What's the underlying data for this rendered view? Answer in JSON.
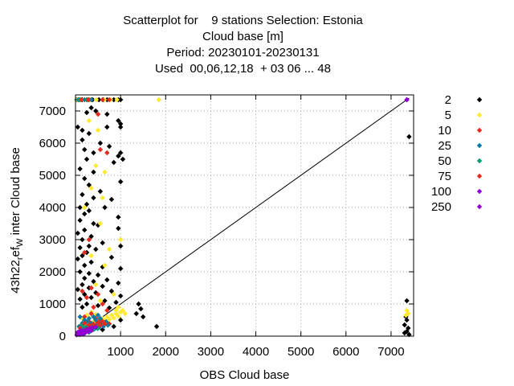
{
  "chart_data": {
    "type": "scatter",
    "title_lines": [
      "Scatterplot for    9 stations Selection: Estonia",
      "Cloud base [m]",
      "Period: 20230101-20230131",
      "Used  00,06,12,18  + 03 06 ... 48"
    ],
    "xlabel": "OBS Cloud base",
    "ylabel": "43h22 ref W inter Cloud base",
    "ylabel_parts": {
      "pre": "43h22",
      "sub1": "r",
      "mid": "ef",
      "sub2": "W",
      "post": "inter Cloud base"
    },
    "xlim": [
      0,
      7500
    ],
    "ylim": [
      0,
      7500
    ],
    "xticks": [
      1000,
      2000,
      3000,
      4000,
      5000,
      6000,
      7000
    ],
    "yticks": [
      0,
      1000,
      2000,
      3000,
      4000,
      5000,
      6000,
      7000
    ],
    "grid": true,
    "diagonal": true,
    "legend_position": "right",
    "series": [
      {
        "name": "2",
        "color": "#000000",
        "points": [
          [
            30,
            7350
          ],
          [
            150,
            7350
          ],
          [
            250,
            7350
          ],
          [
            380,
            7350
          ],
          [
            520,
            7350
          ],
          [
            620,
            7350
          ],
          [
            700,
            7350
          ],
          [
            850,
            7350
          ],
          [
            950,
            7350
          ],
          [
            1000,
            7350
          ],
          [
            350,
            7100
          ],
          [
            450,
            7000
          ],
          [
            700,
            6900
          ],
          [
            250,
            6950
          ],
          [
            1000,
            6600
          ],
          [
            1000,
            6500
          ],
          [
            950,
            6700
          ],
          [
            50,
            6500
          ],
          [
            150,
            6400
          ],
          [
            700,
            6500
          ],
          [
            300,
            6300
          ],
          [
            150,
            6100
          ],
          [
            550,
            6000
          ],
          [
            200,
            5800
          ],
          [
            400,
            5700
          ],
          [
            1000,
            5700
          ],
          [
            1050,
            5500
          ],
          [
            950,
            5600
          ],
          [
            750,
            5900
          ],
          [
            850,
            5400
          ],
          [
            250,
            5500
          ],
          [
            100,
            5200
          ],
          [
            400,
            5100
          ],
          [
            200,
            4900
          ],
          [
            1000,
            4800
          ],
          [
            300,
            4700
          ],
          [
            550,
            4500
          ],
          [
            150,
            4400
          ],
          [
            400,
            4300
          ],
          [
            800,
            4250
          ],
          [
            250,
            4100
          ],
          [
            100,
            4000
          ],
          [
            650,
            4000
          ],
          [
            300,
            3900
          ],
          [
            200,
            3800
          ],
          [
            950,
            3700
          ],
          [
            100,
            3600
          ],
          [
            400,
            3500
          ],
          [
            500,
            3450
          ],
          [
            950,
            3350
          ],
          [
            200,
            3300
          ],
          [
            50,
            3200
          ],
          [
            350,
            3100
          ],
          [
            150,
            3000
          ],
          [
            600,
            2900
          ],
          [
            300,
            2800
          ],
          [
            100,
            2750
          ],
          [
            1000,
            2800
          ],
          [
            450,
            2700
          ],
          [
            250,
            2600
          ],
          [
            150,
            2500
          ],
          [
            800,
            2450
          ],
          [
            50,
            2400
          ],
          [
            350,
            2300
          ],
          [
            200,
            2200
          ],
          [
            600,
            2150
          ],
          [
            1000,
            2100
          ],
          [
            100,
            2000
          ],
          [
            300,
            1950
          ],
          [
            500,
            1900
          ],
          [
            200,
            1800
          ],
          [
            700,
            1750
          ],
          [
            400,
            1700
          ],
          [
            950,
            1650
          ],
          [
            150,
            1600
          ],
          [
            600,
            1550
          ],
          [
            300,
            1500
          ],
          [
            50,
            1450
          ],
          [
            800,
            1400
          ],
          [
            450,
            1350
          ],
          [
            200,
            1300
          ],
          [
            1000,
            1250
          ],
          [
            350,
            1200
          ],
          [
            100,
            1150
          ],
          [
            650,
            1100
          ],
          [
            900,
            1050
          ],
          [
            250,
            1000
          ],
          [
            500,
            950
          ],
          [
            150,
            900
          ],
          [
            750,
            880
          ],
          [
            1400,
            1000
          ],
          [
            1450,
            850
          ],
          [
            1350,
            700
          ],
          [
            1500,
            600
          ],
          [
            1800,
            300
          ],
          [
            700,
            400
          ],
          [
            850,
            300
          ],
          [
            1000,
            500
          ],
          [
            600,
            200
          ],
          [
            300,
            150
          ],
          [
            7350,
            7350
          ],
          [
            7400,
            6200
          ],
          [
            7350,
            1100
          ],
          [
            7350,
            500
          ],
          [
            7300,
            350
          ],
          [
            7350,
            150
          ],
          [
            7400,
            50
          ],
          [
            7300,
            100
          ],
          [
            7380,
            250
          ],
          [
            7330,
            600
          ]
        ]
      },
      {
        "name": "5",
        "color": "#ffea32",
        "points": [
          [
            40,
            7350
          ],
          [
            180,
            7350
          ],
          [
            320,
            7350
          ],
          [
            460,
            7350
          ],
          [
            640,
            7350
          ],
          [
            780,
            7350
          ],
          [
            920,
            7350
          ],
          [
            1850,
            7350
          ],
          [
            300,
            6700
          ],
          [
            500,
            6400
          ],
          [
            450,
            5300
          ],
          [
            650,
            5100
          ],
          [
            350,
            4600
          ],
          [
            600,
            4300
          ],
          [
            200,
            4000
          ],
          [
            550,
            3500
          ],
          [
            1000,
            3000
          ],
          [
            750,
            2700
          ],
          [
            350,
            2500
          ],
          [
            650,
            2200
          ],
          [
            450,
            1600
          ],
          [
            850,
            1300
          ],
          [
            550,
            1100
          ],
          [
            950,
            900
          ],
          [
            1050,
            800
          ],
          [
            900,
            700
          ],
          [
            800,
            650
          ],
          [
            700,
            600
          ],
          [
            600,
            550
          ],
          [
            500,
            500
          ],
          [
            400,
            450
          ],
          [
            300,
            400
          ],
          [
            200,
            350
          ],
          [
            100,
            300
          ],
          [
            150,
            200
          ],
          [
            250,
            250
          ],
          [
            350,
            300
          ],
          [
            450,
            380
          ],
          [
            550,
            420
          ],
          [
            650,
            480
          ],
          [
            750,
            520
          ],
          [
            850,
            560
          ],
          [
            950,
            620
          ],
          [
            1100,
            700
          ],
          [
            1000,
            750
          ],
          [
            900,
            800
          ],
          [
            350,
            750
          ],
          [
            250,
            650
          ],
          [
            150,
            550
          ],
          [
            450,
            680
          ],
          [
            7350,
            800
          ],
          [
            7380,
            700
          ],
          [
            7330,
            650
          ]
        ]
      },
      {
        "name": "10",
        "color": "#e52a1f",
        "points": [
          [
            100,
            7350
          ],
          [
            300,
            7350
          ],
          [
            600,
            7350
          ],
          [
            750,
            7350
          ],
          [
            500,
            6900
          ],
          [
            550,
            5800
          ],
          [
            700,
            5700
          ],
          [
            300,
            3000
          ],
          [
            200,
            2600
          ],
          [
            350,
            1500
          ],
          [
            150,
            1400
          ],
          [
            500,
            1300
          ],
          [
            250,
            1200
          ],
          [
            600,
            1000
          ],
          [
            400,
            900
          ],
          [
            700,
            800
          ],
          [
            350,
            700
          ],
          [
            200,
            600
          ],
          [
            450,
            550
          ],
          [
            550,
            500
          ],
          [
            300,
            450
          ],
          [
            650,
            420
          ],
          [
            150,
            350
          ],
          [
            750,
            380
          ],
          [
            400,
            320
          ],
          [
            250,
            280
          ]
        ]
      },
      {
        "name": "25",
        "color": "#0a79a3",
        "points": [
          [
            60,
            7350
          ],
          [
            200,
            7350
          ],
          [
            350,
            7350
          ],
          [
            100,
            600
          ],
          [
            200,
            500
          ],
          [
            300,
            550
          ],
          [
            400,
            600
          ],
          [
            500,
            650
          ],
          [
            150,
            400
          ],
          [
            250,
            450
          ],
          [
            350,
            400
          ],
          [
            450,
            500
          ],
          [
            550,
            550
          ],
          [
            80,
            300
          ],
          [
            180,
            250
          ],
          [
            280,
            300
          ],
          [
            380,
            350
          ],
          [
            480,
            380
          ],
          [
            580,
            420
          ],
          [
            680,
            450
          ],
          [
            120,
            200
          ],
          [
            220,
            150
          ],
          [
            320,
            180
          ],
          [
            420,
            220
          ],
          [
            520,
            260
          ],
          [
            620,
            300
          ],
          [
            720,
            340
          ],
          [
            100,
            100
          ],
          [
            200,
            80
          ],
          [
            300,
            120
          ]
        ]
      },
      {
        "name": "50",
        "color": "#009e73",
        "points": [
          [
            80,
            7350
          ],
          [
            250,
            7350
          ],
          [
            150,
            350
          ],
          [
            250,
            300
          ],
          [
            350,
            280
          ],
          [
            450,
            320
          ],
          [
            550,
            360
          ],
          [
            650,
            400
          ],
          [
            120,
            250
          ],
          [
            220,
            200
          ],
          [
            320,
            230
          ],
          [
            420,
            270
          ],
          [
            520,
            300
          ],
          [
            90,
            150
          ],
          [
            190,
            120
          ],
          [
            290,
            160
          ],
          [
            390,
            200
          ],
          [
            490,
            240
          ]
        ]
      },
      {
        "name": "75",
        "color": "#e52a1f",
        "points": [
          [
            130,
            7350
          ],
          [
            280,
            7350
          ],
          [
            200,
            400
          ],
          [
            300,
            350
          ],
          [
            400,
            380
          ],
          [
            500,
            420
          ],
          [
            600,
            460
          ],
          [
            100,
            250
          ],
          [
            250,
            220
          ],
          [
            350,
            260
          ],
          [
            450,
            300
          ],
          [
            550,
            340
          ],
          [
            650,
            380
          ]
        ]
      },
      {
        "name": "100",
        "color": "#9400d3",
        "points": [
          [
            50,
            120
          ],
          [
            120,
            180
          ],
          [
            180,
            150
          ],
          [
            250,
            200
          ],
          [
            320,
            240
          ],
          [
            380,
            260
          ],
          [
            450,
            280
          ],
          [
            80,
            60
          ],
          [
            150,
            90
          ],
          [
            220,
            110
          ],
          [
            280,
            140
          ],
          [
            350,
            170
          ],
          [
            7350,
            7350
          ]
        ]
      },
      {
        "name": "250",
        "color": "#9400d3",
        "points": [
          [
            60,
            80
          ],
          [
            130,
            130
          ],
          [
            200,
            160
          ],
          [
            270,
            190
          ],
          [
            340,
            210
          ],
          [
            30,
            40
          ],
          [
            100,
            50
          ],
          [
            170,
            70
          ]
        ]
      }
    ]
  }
}
